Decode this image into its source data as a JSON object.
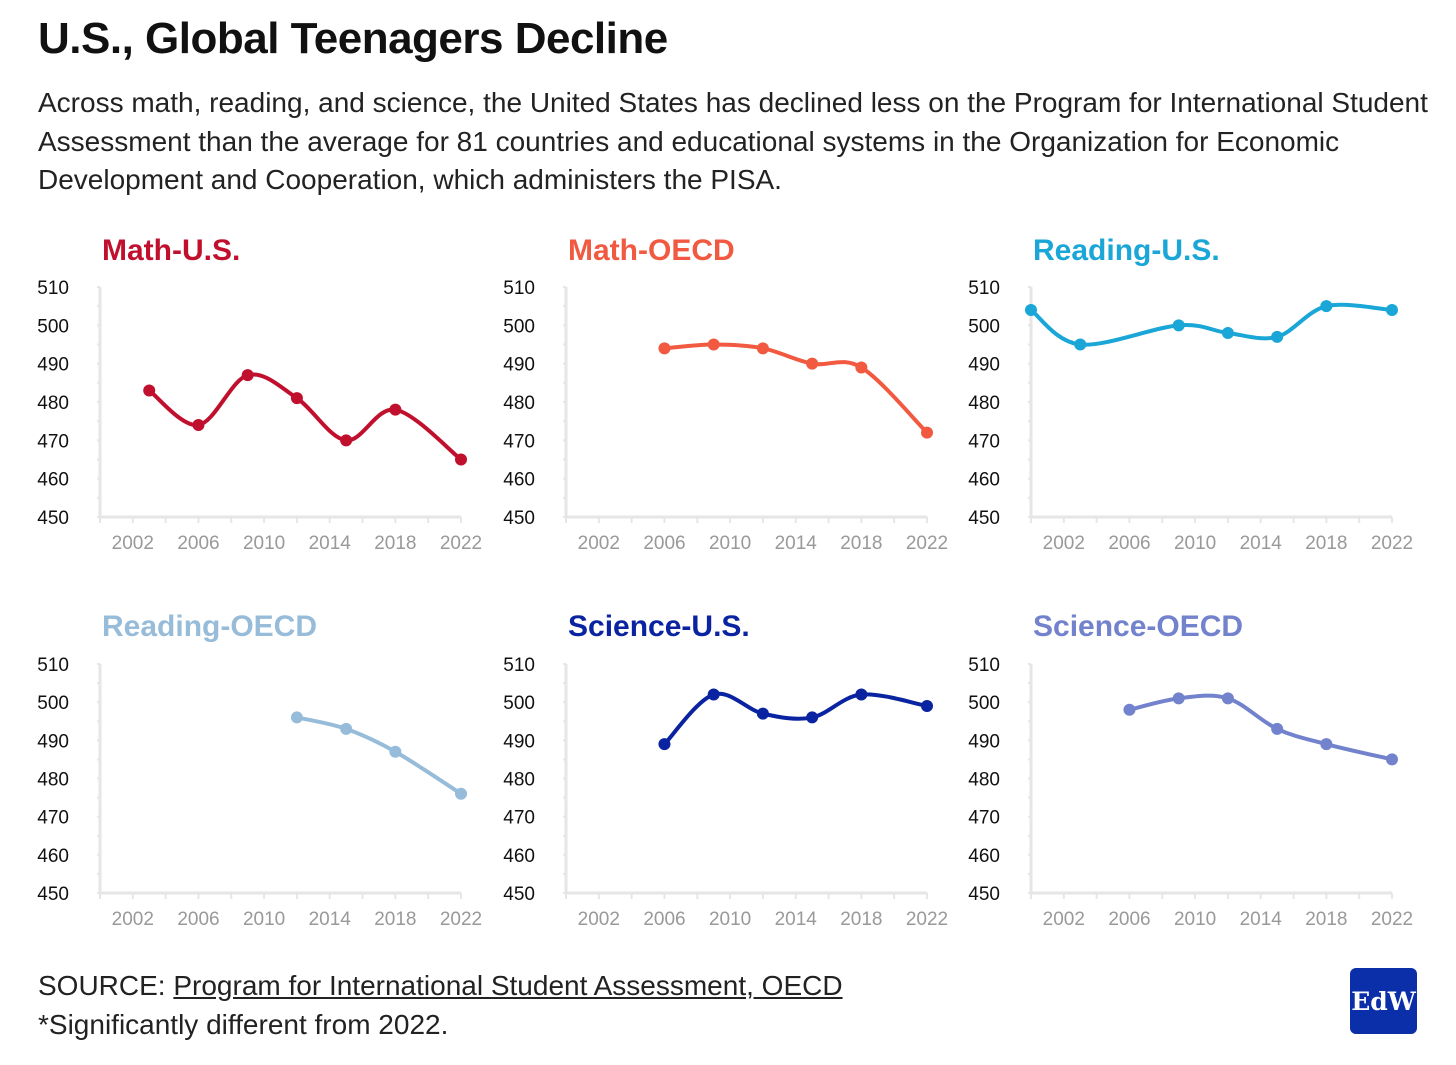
{
  "header": {
    "title": "U.S., Global Teenagers Decline",
    "subtitle": "Across math, reading, and science, the United States has declined less on the Program for International Student Assessment than the average for 81 countries and educational systems in the Organization for Economic Development and Cooperation, which administers the PISA."
  },
  "footer": {
    "source_prefix": "SOURCE: ",
    "source_link": "Program for International Student Assessment, OECD",
    "note": "*Significantly different from 2022."
  },
  "logo": {
    "text": "EdW",
    "color": "#0b2fa8"
  },
  "chart_data": [
    {
      "type": "line",
      "title": "Math-U.S.",
      "color": "#c0102e",
      "x": [
        2003,
        2006,
        2009,
        2012,
        2015,
        2018,
        2022
      ],
      "y": [
        483,
        474,
        487,
        481,
        470,
        478,
        465
      ],
      "xlim": [
        2000,
        2022
      ],
      "ylim": [
        450,
        510
      ],
      "xticks": [
        2002,
        2006,
        2010,
        2014,
        2018,
        2022
      ],
      "yticks": [
        450,
        460,
        470,
        480,
        490,
        500,
        510
      ]
    },
    {
      "type": "line",
      "title": "Math-OECD",
      "color": "#f15a40",
      "x": [
        2006,
        2009,
        2012,
        2015,
        2018,
        2022
      ],
      "y": [
        494,
        495,
        494,
        490,
        489,
        472
      ],
      "xlim": [
        2000,
        2022
      ],
      "ylim": [
        450,
        510
      ],
      "xticks": [
        2002,
        2006,
        2010,
        2014,
        2018,
        2022
      ],
      "yticks": [
        450,
        460,
        470,
        480,
        490,
        500,
        510
      ]
    },
    {
      "type": "line",
      "title": "Reading-U.S.",
      "color": "#1aa6d6",
      "x": [
        2000,
        2003,
        2009,
        2012,
        2015,
        2018,
        2022
      ],
      "y": [
        504,
        495,
        500,
        498,
        497,
        505,
        504
      ],
      "xlim": [
        2000,
        2022
      ],
      "ylim": [
        450,
        510
      ],
      "xticks": [
        2002,
        2006,
        2010,
        2014,
        2018,
        2022
      ],
      "yticks": [
        450,
        460,
        470,
        480,
        490,
        500,
        510
      ]
    },
    {
      "type": "line",
      "title": "Reading-OECD",
      "color": "#97bcd9",
      "x": [
        2012,
        2015,
        2018,
        2022
      ],
      "y": [
        496,
        493,
        487,
        476
      ],
      "xlim": [
        2000,
        2022
      ],
      "ylim": [
        450,
        510
      ],
      "xticks": [
        2002,
        2006,
        2010,
        2014,
        2018,
        2022
      ],
      "yticks": [
        450,
        460,
        470,
        480,
        490,
        500,
        510
      ]
    },
    {
      "type": "line",
      "title": "Science-U.S.",
      "color": "#0a23a0",
      "x": [
        2006,
        2009,
        2012,
        2015,
        2018,
        2022
      ],
      "y": [
        489,
        502,
        497,
        496,
        502,
        499
      ],
      "xlim": [
        2000,
        2022
      ],
      "ylim": [
        450,
        510
      ],
      "xticks": [
        2002,
        2006,
        2010,
        2014,
        2018,
        2022
      ],
      "yticks": [
        450,
        460,
        470,
        480,
        490,
        500,
        510
      ]
    },
    {
      "type": "line",
      "title": "Science-OECD",
      "color": "#7282cc",
      "x": [
        2006,
        2009,
        2012,
        2015,
        2018,
        2022
      ],
      "y": [
        498,
        501,
        501,
        493,
        489,
        485
      ],
      "xlim": [
        2000,
        2022
      ],
      "ylim": [
        450,
        510
      ],
      "xticks": [
        2002,
        2006,
        2010,
        2014,
        2018,
        2022
      ],
      "yticks": [
        450,
        460,
        470,
        480,
        490,
        500,
        510
      ]
    }
  ]
}
